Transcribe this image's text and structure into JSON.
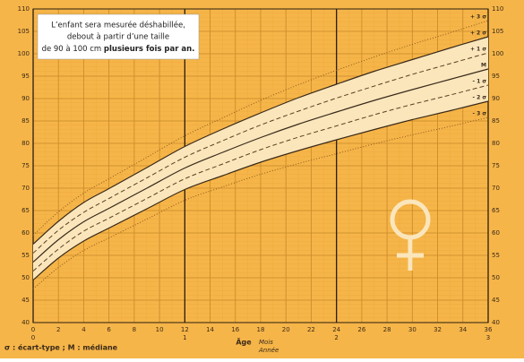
{
  "chart_data": {
    "type": "line",
    "note_lines": [
      "L’enfant sera mesurée déshabillée,",
      "debout à partir d’une taille",
      "de 90 à 100 cm"
    ],
    "note_bold": "plusieurs fois par an.",
    "footnote": "σ : écart-type ; M : médiane",
    "x_label": "Âge",
    "x_unit_month": "Mois",
    "x_unit_year": "Année",
    "x": [
      0,
      2,
      4,
      6,
      9,
      12,
      15,
      18,
      21,
      24,
      27,
      30,
      33,
      36
    ],
    "xlim": [
      0,
      36
    ],
    "xticks": [
      0,
      2,
      4,
      6,
      8,
      10,
      12,
      14,
      16,
      18,
      20,
      22,
      24,
      26,
      28,
      30,
      32,
      34,
      36
    ],
    "year_ticks": [
      {
        "value": 0,
        "label": "0"
      },
      {
        "value": 12,
        "label": "1"
      },
      {
        "value": 24,
        "label": "2"
      },
      {
        "value": 36,
        "label": "3"
      }
    ],
    "ylim": [
      40,
      110
    ],
    "yticks": [
      40,
      45,
      50,
      55,
      60,
      65,
      70,
      75,
      80,
      85,
      90,
      95,
      100,
      105,
      110
    ],
    "grid": true,
    "band": [
      "+ 2 σ",
      "- 2 σ"
    ],
    "series": [
      {
        "name": "+ 3 σ",
        "style": "dotted",
        "color": "#8a5a20",
        "values": [
          59.5,
          64.7,
          68.9,
          72.1,
          76.9,
          81.7,
          85.7,
          89.6,
          93.1,
          96.3,
          99.3,
          102.1,
          104.7,
          107.4
        ]
      },
      {
        "name": "+ 2 σ",
        "style": "solid",
        "color": "#3a2a1a",
        "values": [
          57.5,
          62.6,
          66.8,
          69.9,
          74.6,
          79.3,
          83.2,
          86.8,
          90.2,
          93.2,
          96.1,
          98.7,
          101.3,
          103.8
        ]
      },
      {
        "name": "+ 1 σ",
        "style": "dashed",
        "color": "#5a4020",
        "values": [
          55.5,
          60.6,
          64.6,
          67.7,
          72.3,
          76.9,
          80.6,
          84.1,
          87.2,
          90.1,
          92.8,
          95.4,
          97.8,
          100.2
        ]
      },
      {
        "name": "M",
        "style": "solid",
        "color": "#3a2a1a",
        "values": [
          53.5,
          58.5,
          62.5,
          65.5,
          70,
          74.5,
          78,
          81.3,
          84.3,
          87,
          89.6,
          92,
          94.3,
          96.6
        ]
      },
      {
        "name": "- 1 σ",
        "style": "dashed",
        "color": "#5a4020",
        "values": [
          51.5,
          56.4,
          60.4,
          63.3,
          67.7,
          72.1,
          75.4,
          78.6,
          81.4,
          83.9,
          86.4,
          88.7,
          90.8,
          93
        ]
      },
      {
        "name": "- 2 σ",
        "style": "solid",
        "color": "#3a2a1a",
        "values": [
          49.5,
          54.4,
          58.2,
          61.1,
          65.4,
          69.7,
          72.8,
          75.8,
          78.4,
          80.8,
          83.1,
          85.3,
          87.3,
          89.4
        ]
      },
      {
        "name": "- 3 σ",
        "style": "dotted",
        "color": "#8a5a20",
        "values": [
          47.5,
          52.3,
          56.1,
          58.9,
          63.1,
          67.3,
          70.3,
          73.1,
          75.5,
          77.7,
          79.9,
          81.9,
          83.8,
          85.8
        ]
      }
    ]
  }
}
